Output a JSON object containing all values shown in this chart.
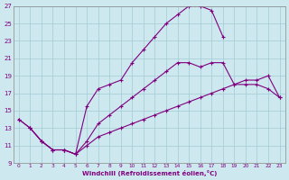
{
  "xlabel": "Windchill (Refroidissement éolien,°C)",
  "background_color": "#cde8ee",
  "line_color": "#800080",
  "grid_color": "#a8cfd8",
  "xlim": [
    -0.5,
    23.5
  ],
  "ylim": [
    9,
    27
  ],
  "xticks": [
    0,
    1,
    2,
    3,
    4,
    5,
    6,
    7,
    8,
    9,
    10,
    11,
    12,
    13,
    14,
    15,
    16,
    17,
    18,
    19,
    20,
    21,
    22,
    23
  ],
  "yticks": [
    9,
    11,
    13,
    15,
    17,
    19,
    21,
    23,
    25,
    27
  ],
  "line1_x": [
    0,
    1,
    2,
    3,
    4,
    5,
    6,
    7,
    8,
    9,
    10,
    11,
    12,
    13,
    14,
    15,
    16,
    17,
    18
  ],
  "line1_y": [
    14.0,
    13.0,
    11.5,
    10.5,
    10.5,
    10.0,
    15.5,
    17.5,
    18.0,
    18.5,
    20.5,
    22.0,
    23.5,
    25.0,
    26.0,
    27.0,
    27.0,
    26.5,
    23.5
  ],
  "line2_x": [
    0,
    1,
    2,
    3,
    4,
    5,
    6,
    7,
    8,
    9,
    10,
    11,
    12,
    13,
    14,
    15,
    16,
    17,
    18,
    19,
    20,
    21,
    22,
    23
  ],
  "line2_y": [
    14.0,
    13.0,
    11.5,
    10.5,
    10.5,
    10.0,
    11.5,
    13.5,
    14.5,
    15.5,
    16.5,
    17.5,
    18.5,
    19.5,
    20.5,
    20.5,
    20.0,
    20.5,
    20.5,
    18.0,
    18.0,
    18.0,
    17.5,
    16.5
  ],
  "line3_x": [
    1,
    2,
    3,
    4,
    5,
    6,
    7,
    8,
    9,
    10,
    11,
    12,
    13,
    14,
    15,
    16,
    17,
    18,
    19,
    20,
    21,
    22,
    23
  ],
  "line3_y": [
    13.0,
    11.5,
    10.5,
    10.5,
    10.0,
    11.0,
    12.0,
    12.5,
    13.0,
    13.5,
    14.0,
    14.5,
    15.0,
    15.5,
    16.0,
    16.5,
    17.0,
    17.5,
    18.0,
    18.5,
    18.5,
    19.0,
    16.5
  ]
}
